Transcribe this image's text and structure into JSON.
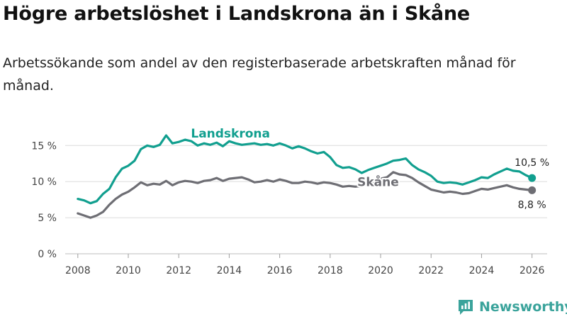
{
  "title": "Högre arbetslöshet i Landskrona än i Skåne",
  "subtitle": "Arbetssökande som andel av den registerbaserade arbetskraften månad för månad.",
  "brand": {
    "name": "Newsworthy",
    "icon": "newsworthy-logo-icon",
    "color": "#3aa39b"
  },
  "chart_data": {
    "type": "line",
    "title": "",
    "xlabel": "",
    "ylabel": "",
    "xlim": [
      2007.5,
      2026.6
    ],
    "ylim": [
      0,
      16.5
    ],
    "grid": true,
    "x_ticks": [
      2008,
      2010,
      2012,
      2014,
      2016,
      2018,
      2020,
      2022,
      2024,
      2026
    ],
    "x_tick_labels": [
      "2008",
      "2010",
      "2012",
      "2014",
      "2016",
      "2018",
      "2020",
      "2022",
      "2024",
      "2026"
    ],
    "y_ticks": [
      0,
      5,
      10,
      15
    ],
    "y_tick_labels": [
      "0 %",
      "5 %",
      "10 %",
      "15 %"
    ],
    "series": [
      {
        "name": "Landskrona",
        "color": "#119f8f",
        "x": [
          2008,
          2008.25,
          2008.5,
          2008.75,
          2009,
          2009.25,
          2009.5,
          2009.75,
          2010,
          2010.25,
          2010.5,
          2010.75,
          2011,
          2011.25,
          2011.5,
          2011.75,
          2012,
          2012.25,
          2012.5,
          2012.75,
          2013,
          2013.25,
          2013.5,
          2013.75,
          2014,
          2014.25,
          2014.5,
          2014.75,
          2015,
          2015.25,
          2015.5,
          2015.75,
          2016,
          2016.25,
          2016.5,
          2016.75,
          2017,
          2017.25,
          2017.5,
          2017.75,
          2018,
          2018.25,
          2018.5,
          2018.75,
          2019,
          2019.25,
          2019.5,
          2019.75,
          2020,
          2020.25,
          2020.5,
          2020.75,
          2021,
          2021.25,
          2021.5,
          2021.75,
          2022,
          2022.25,
          2022.5,
          2022.75,
          2023,
          2023.25,
          2023.5,
          2023.75,
          2024,
          2024.25,
          2024.5,
          2024.75,
          2025,
          2025.25,
          2025.5,
          2025.75,
          2026
        ],
        "values": [
          7.6,
          7.4,
          7.0,
          7.3,
          8.3,
          9.0,
          10.6,
          11.8,
          12.2,
          12.9,
          14.5,
          15.0,
          14.8,
          15.1,
          16.4,
          15.3,
          15.5,
          15.8,
          15.6,
          15.0,
          15.3,
          15.1,
          15.4,
          14.9,
          15.6,
          15.3,
          15.1,
          15.2,
          15.3,
          15.1,
          15.2,
          15.0,
          15.3,
          15.0,
          14.6,
          14.9,
          14.6,
          14.2,
          13.9,
          14.1,
          13.4,
          12.3,
          11.9,
          12.0,
          11.7,
          11.2,
          11.6,
          11.9,
          12.2,
          12.5,
          12.9,
          13.0,
          13.2,
          12.3,
          11.7,
          11.3,
          10.8,
          10.0,
          9.8,
          9.9,
          9.8,
          9.6,
          9.9,
          10.2,
          10.6,
          10.5,
          11.0,
          11.4,
          11.8,
          11.5,
          11.4,
          10.9,
          10.5
        ]
      },
      {
        "name": "Skåne",
        "color": "#6e6e74",
        "x": [
          2008,
          2008.25,
          2008.5,
          2008.75,
          2009,
          2009.25,
          2009.5,
          2009.75,
          2010,
          2010.25,
          2010.5,
          2010.75,
          2011,
          2011.25,
          2011.5,
          2011.75,
          2012,
          2012.25,
          2012.5,
          2012.75,
          2013,
          2013.25,
          2013.5,
          2013.75,
          2014,
          2014.25,
          2014.5,
          2014.75,
          2015,
          2015.25,
          2015.5,
          2015.75,
          2016,
          2016.25,
          2016.5,
          2016.75,
          2017,
          2017.25,
          2017.5,
          2017.75,
          2018,
          2018.25,
          2018.5,
          2018.75,
          2019,
          2019.25,
          2019.5,
          2019.75,
          2020,
          2020.25,
          2020.5,
          2020.75,
          2021,
          2021.25,
          2021.5,
          2021.75,
          2022,
          2022.25,
          2022.5,
          2022.75,
          2023,
          2023.25,
          2023.5,
          2023.75,
          2024,
          2024.25,
          2024.5,
          2024.75,
          2025,
          2025.25,
          2025.5,
          2025.75,
          2026
        ],
        "values": [
          5.6,
          5.3,
          5.0,
          5.3,
          5.8,
          6.8,
          7.6,
          8.2,
          8.6,
          9.2,
          9.9,
          9.5,
          9.7,
          9.6,
          10.1,
          9.5,
          9.9,
          10.1,
          10.0,
          9.8,
          10.1,
          10.2,
          10.5,
          10.1,
          10.4,
          10.5,
          10.6,
          10.3,
          9.9,
          10.0,
          10.2,
          10.0,
          10.3,
          10.1,
          9.8,
          9.8,
          10.0,
          9.9,
          9.7,
          9.9,
          9.8,
          9.6,
          9.3,
          9.4,
          9.3,
          9.4,
          9.6,
          9.8,
          10.4,
          10.6,
          11.3,
          11.0,
          10.9,
          10.5,
          9.9,
          9.4,
          8.9,
          8.7,
          8.5,
          8.6,
          8.5,
          8.3,
          8.4,
          8.7,
          9.0,
          8.9,
          9.1,
          9.3,
          9.5,
          9.2,
          9.0,
          8.9,
          8.8
        ]
      }
    ],
    "end_labels": [
      {
        "series": "Landskrona",
        "text": "10,5 %"
      },
      {
        "series": "Skåne",
        "text": "8,8 %"
      }
    ]
  }
}
